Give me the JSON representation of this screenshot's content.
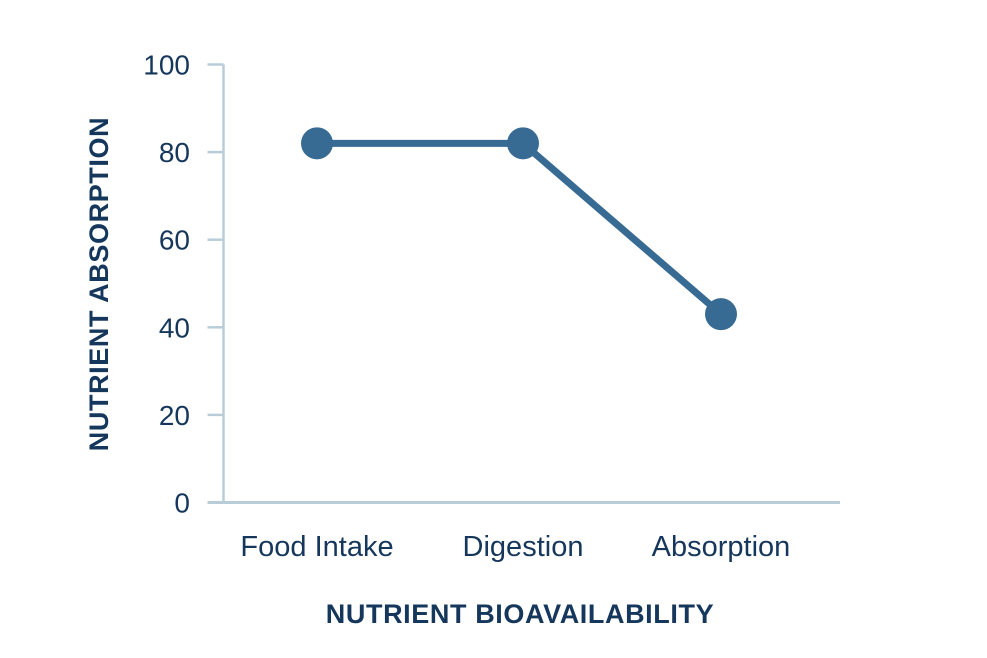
{
  "chart_data": {
    "type": "line",
    "title": "",
    "xlabel": "NUTRIENT BIOAVAILABILITY",
    "ylabel": "NUTRIENT ABSORPTION",
    "categories": [
      "Food Intake",
      "Digestion",
      "Absorption"
    ],
    "values": [
      82,
      82,
      43
    ],
    "ylim": [
      0,
      100
    ],
    "yticks": [
      0,
      20,
      40,
      60,
      80,
      100
    ],
    "grid": false,
    "legend": "none",
    "marker_style": "filled-circle",
    "colors": {
      "line": "#376b94",
      "marker": "#376b94",
      "axis": "#b9cdd9",
      "text": "#16375c"
    }
  }
}
